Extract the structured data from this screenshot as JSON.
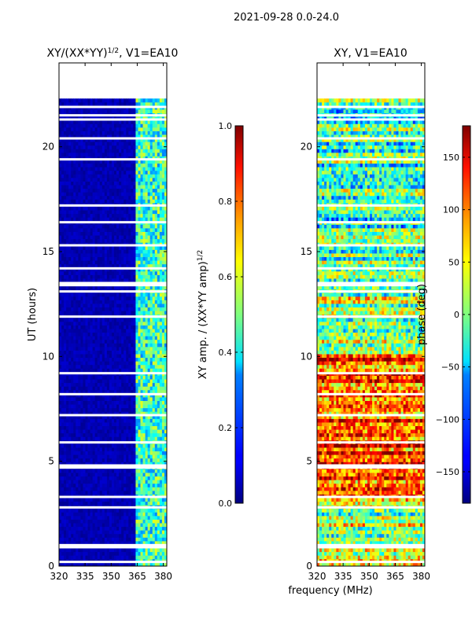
{
  "figure": {
    "suptitle": "2021-09-28 0.0-24.0",
    "xlabel": "frequency (MHz)"
  },
  "colors": {
    "jet_low": "#00007f",
    "jet_mid": "#7fff7f",
    "jet_high": "#7f0000"
  },
  "chart_data": [
    {
      "type": "heatmap",
      "title_main": "XY/(XX*YY)",
      "title_sup": "1/2",
      "title_suffix": ", V1=EA10",
      "xlabel": "",
      "ylabel": "UT (hours)",
      "xlim": [
        320,
        382
      ],
      "ylim": [
        0,
        24
      ],
      "xticks": [
        "320",
        "335",
        "350",
        "365",
        "380"
      ],
      "xtick_values": [
        320,
        335,
        350,
        365,
        380
      ],
      "yticks": [
        "0",
        "5",
        "10",
        "15",
        "20"
      ],
      "ytick_values": [
        0,
        5,
        10,
        15,
        20
      ],
      "data_y_range": [
        0,
        22.3
      ],
      "colorbar": {
        "label_main": "XY amp. / (XX*YY amp)",
        "label_sup": "1/2",
        "range": [
          0.0,
          1.0
        ],
        "ticks": [
          "0.0",
          "0.2",
          "0.4",
          "0.6",
          "0.8",
          "1.0"
        ],
        "tick_values": [
          0.0,
          0.2,
          0.4,
          0.6,
          0.8,
          1.0
        ]
      }
    },
    {
      "type": "heatmap",
      "title_main": "XY, V1=EA10",
      "title_sup": "",
      "title_suffix": "",
      "xlabel": "",
      "ylabel": "",
      "xlim": [
        320,
        382
      ],
      "ylim": [
        0,
        24
      ],
      "xticks": [
        "320",
        "335",
        "350",
        "365",
        "380"
      ],
      "xtick_values": [
        320,
        335,
        350,
        365,
        380
      ],
      "yticks": [
        "0",
        "5",
        "10",
        "15",
        "20"
      ],
      "ytick_values": [
        0,
        5,
        10,
        15,
        20
      ],
      "data_y_range": [
        0,
        22.3
      ],
      "colorbar": {
        "label_main": "phase (deg)",
        "label_sup": "",
        "range": [
          -180,
          180
        ],
        "ticks": [
          "−150",
          "−100",
          "−50",
          "0",
          "50",
          "100",
          "150"
        ],
        "tick_values": [
          -150,
          -100,
          -50,
          0,
          50,
          100,
          150
        ]
      }
    }
  ]
}
